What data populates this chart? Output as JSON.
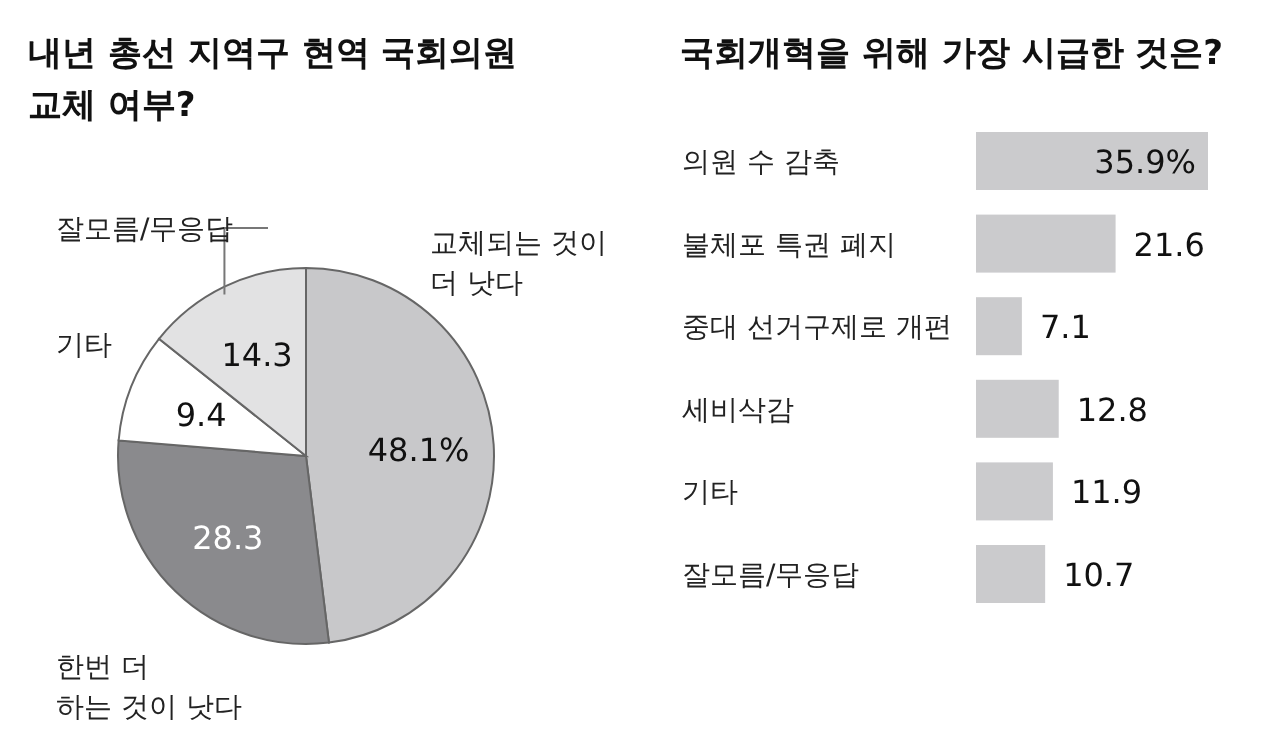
{
  "chart_data": [
    {
      "type": "pie",
      "title": "내년 총선 지역구 현역 국회의원 교체 여부?",
      "categories": [
        "교체되는 것이 더 낫다",
        "한번 더 하는 것이 낫다",
        "기타",
        "잘모름/무응답"
      ],
      "values": [
        48.1,
        28.3,
        9.4,
        14.3
      ],
      "colors": [
        "#c8c8ca",
        "#8a8a8d",
        "#ffffff",
        "#e2e2e3"
      ],
      "value_labels": [
        "48.1%",
        "28.3",
        "9.4",
        "14.3"
      ]
    },
    {
      "type": "bar",
      "orientation": "horizontal",
      "title": "국회개혁을 위해 가장 시급한 것은?",
      "categories": [
        "의원 수 감축",
        "불체포 특권 폐지",
        "중대 선거구제로 개편",
        "세비삭감",
        "기타",
        "잘모름/무응답"
      ],
      "values": [
        35.9,
        21.6,
        7.1,
        12.8,
        11.9,
        10.7
      ],
      "color": "#cbcbcd",
      "value_labels": [
        "35.9%",
        "21.6",
        "7.1",
        "12.8",
        "11.9",
        "10.7"
      ]
    }
  ]
}
